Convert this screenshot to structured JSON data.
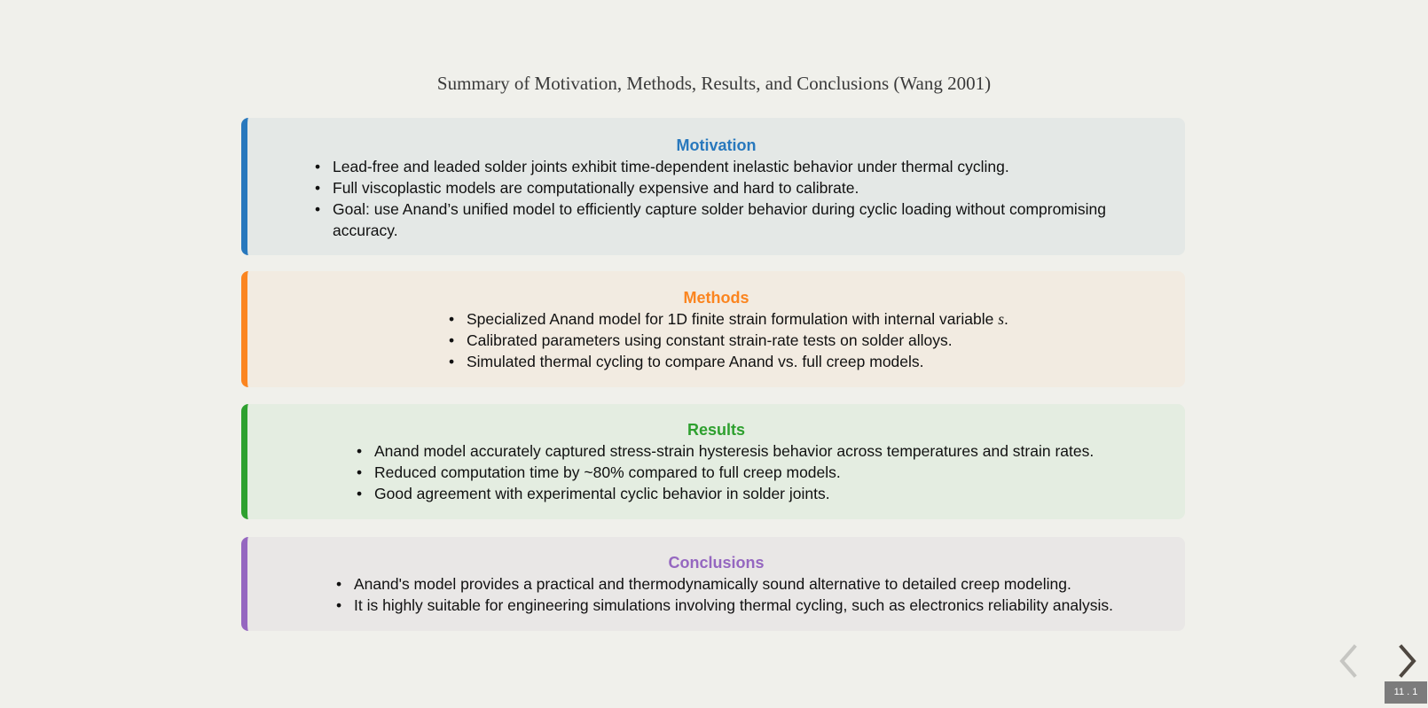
{
  "slide": {
    "title": "Summary of Motivation, Methods, Results, and Conclusions (Wang 2001)"
  },
  "sections": {
    "motivation": {
      "heading": "Motivation",
      "color": "#2878bd",
      "bullets": [
        "Lead-free and leaded solder joints exhibit time-dependent inelastic behavior under thermal cycling.",
        "Full viscoplastic models are computationally expensive and hard to calibrate.",
        "Goal: use Anand’s unified model to efficiently capture solder behavior during cyclic loading without compromising accuracy."
      ]
    },
    "methods": {
      "heading": "Methods",
      "color": "#fb8520",
      "bullet1_text": "Specialized Anand model for 1D finite strain formulation with internal variable ",
      "bullet1_var": "s",
      "bullet1_end": ".",
      "bullets": [
        "Calibrated parameters using constant strain-rate tests on solder alloys.",
        "Simulated thermal cycling to compare Anand vs. full creep models."
      ]
    },
    "results": {
      "heading": "Results",
      "color": "#2ea02f",
      "bullets": [
        "Anand model accurately captured stress-strain hysteresis behavior across temperatures and strain rates.",
        "Reduced computation time by ~80% compared to full creep models.",
        "Good agreement with experimental cyclic behavior in solder joints."
      ]
    },
    "conclusions": {
      "heading": "Conclusions",
      "color": "#9567c0",
      "bullets": [
        "Anand's model provides a practical and thermodynamically sound alternative to detailed creep modeling.",
        "It is highly suitable for engineering simulations involving thermal cycling, such as electronics reliability analysis."
      ]
    }
  },
  "navigation": {
    "prev_icon": "chevron-left-icon",
    "next_icon": "chevron-right-icon",
    "slide_number": "11 . 1"
  }
}
